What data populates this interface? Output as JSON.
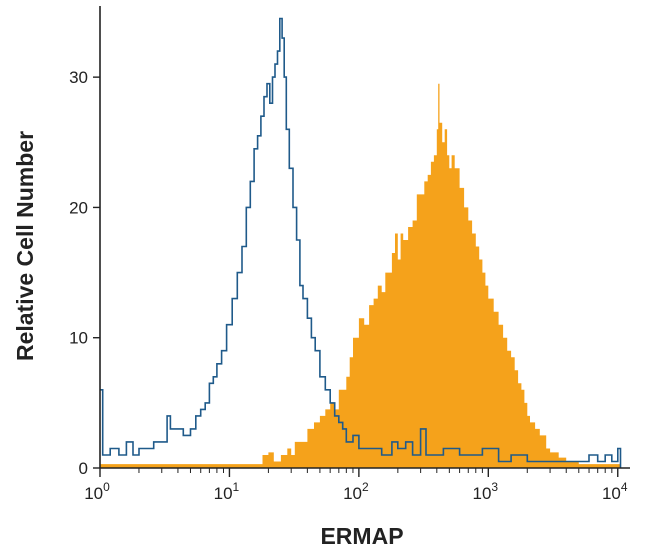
{
  "chart_data": {
    "type": "area",
    "title": "",
    "xlabel": "ERMAP",
    "ylabel": "Relative Cell Number",
    "xscale": "log",
    "xlim": [
      1,
      12000
    ],
    "ylim": [
      0,
      35
    ],
    "x_ticks": [
      {
        "value": 1,
        "base": "10",
        "exp": "0"
      },
      {
        "value": 10,
        "base": "10",
        "exp": "1"
      },
      {
        "value": 100,
        "base": "10",
        "exp": "2"
      },
      {
        "value": 1000,
        "base": "10",
        "exp": "3"
      },
      {
        "value": 10000,
        "base": "10",
        "exp": "4"
      }
    ],
    "y_ticks": [
      "0",
      "10",
      "20",
      "30"
    ],
    "grid": false,
    "legend": "none",
    "series": [
      {
        "style": "outline",
        "color": "#1f5a8a",
        "points": [
          [
            1.0,
            6
          ],
          [
            1.05,
            1
          ],
          [
            1.2,
            1.5
          ],
          [
            1.4,
            1
          ],
          [
            1.6,
            2
          ],
          [
            1.8,
            1
          ],
          [
            2.0,
            1.5
          ],
          [
            2.3,
            1.5
          ],
          [
            2.6,
            2
          ],
          [
            3.0,
            2
          ],
          [
            3.3,
            4
          ],
          [
            3.5,
            3
          ],
          [
            4.0,
            3
          ],
          [
            4.4,
            2.5
          ],
          [
            5.0,
            3
          ],
          [
            5.5,
            4
          ],
          [
            6.0,
            4.5
          ],
          [
            6.5,
            5
          ],
          [
            7.0,
            6.5
          ],
          [
            7.5,
            7
          ],
          [
            8.0,
            8
          ],
          [
            8.7,
            9
          ],
          [
            9.5,
            11
          ],
          [
            10.5,
            13
          ],
          [
            11.5,
            15
          ],
          [
            12.5,
            17
          ],
          [
            13.5,
            20
          ],
          [
            14.5,
            22
          ],
          [
            15.5,
            24.5
          ],
          [
            16.5,
            25.5
          ],
          [
            17.5,
            27
          ],
          [
            18.5,
            28.5
          ],
          [
            19.5,
            29.5
          ],
          [
            20.5,
            28
          ],
          [
            21.5,
            30
          ],
          [
            22.5,
            31
          ],
          [
            23.5,
            32
          ],
          [
            24.5,
            34.5
          ],
          [
            25.5,
            33
          ],
          [
            26.5,
            30
          ],
          [
            27.5,
            26
          ],
          [
            29,
            23
          ],
          [
            31,
            20
          ],
          [
            33,
            17.5
          ],
          [
            35,
            14
          ],
          [
            37,
            13
          ],
          [
            40,
            11.5
          ],
          [
            43,
            10
          ],
          [
            46,
            9
          ],
          [
            50,
            7
          ],
          [
            55,
            6
          ],
          [
            60,
            5
          ],
          [
            65,
            4
          ],
          [
            70,
            3.5
          ],
          [
            75,
            3
          ],
          [
            80,
            2
          ],
          [
            90,
            2.5
          ],
          [
            100,
            1.5
          ],
          [
            120,
            1.5
          ],
          [
            150,
            1
          ],
          [
            180,
            2
          ],
          [
            200,
            1.5
          ],
          [
            230,
            2
          ],
          [
            260,
            1
          ],
          [
            300,
            3
          ],
          [
            330,
            1
          ],
          [
            400,
            1
          ],
          [
            450,
            1.5
          ],
          [
            500,
            1.5
          ],
          [
            600,
            1
          ],
          [
            700,
            1
          ],
          [
            800,
            1
          ],
          [
            900,
            1.5
          ],
          [
            1000,
            1.5
          ],
          [
            1200,
            0.5
          ],
          [
            1500,
            1
          ],
          [
            2000,
            0.5
          ],
          [
            3000,
            0.5
          ],
          [
            4000,
            0.5
          ],
          [
            5000,
            0.5
          ],
          [
            6000,
            1
          ],
          [
            7000,
            0.5
          ],
          [
            8000,
            1
          ],
          [
            9000,
            0.5
          ],
          [
            10000,
            1.5
          ],
          [
            10500,
            0
          ]
        ]
      },
      {
        "style": "filled",
        "color": "#f5a21b",
        "points": [
          [
            1.0,
            0.3
          ],
          [
            17.5,
            0.3
          ],
          [
            18,
            1
          ],
          [
            20,
            1.2
          ],
          [
            22,
            0.5
          ],
          [
            25,
            1
          ],
          [
            28,
            1.5
          ],
          [
            30,
            1
          ],
          [
            32,
            2
          ],
          [
            35,
            2
          ],
          [
            40,
            3
          ],
          [
            45,
            3.5
          ],
          [
            50,
            4
          ],
          [
            55,
            4.5
          ],
          [
            60,
            5
          ],
          [
            65,
            4.5
          ],
          [
            70,
            6
          ],
          [
            75,
            6
          ],
          [
            80,
            7
          ],
          [
            85,
            8.5
          ],
          [
            90,
            10
          ],
          [
            100,
            11.5
          ],
          [
            110,
            11
          ],
          [
            120,
            12.5
          ],
          [
            130,
            13
          ],
          [
            140,
            14
          ],
          [
            150,
            13.5
          ],
          [
            160,
            15
          ],
          [
            170,
            15
          ],
          [
            180,
            16.5
          ],
          [
            190,
            18
          ],
          [
            200,
            16
          ],
          [
            210,
            18
          ],
          [
            220,
            17.5
          ],
          [
            240,
            18.5
          ],
          [
            260,
            19
          ],
          [
            280,
            21
          ],
          [
            300,
            21
          ],
          [
            320,
            22
          ],
          [
            340,
            22.5
          ],
          [
            360,
            23.5
          ],
          [
            380,
            24
          ],
          [
            400,
            26
          ],
          [
            410,
            29.5
          ],
          [
            420,
            26.5
          ],
          [
            440,
            25
          ],
          [
            460,
            26
          ],
          [
            480,
            24
          ],
          [
            500,
            23
          ],
          [
            520,
            24
          ],
          [
            550,
            23
          ],
          [
            600,
            21.5
          ],
          [
            650,
            20
          ],
          [
            700,
            19
          ],
          [
            750,
            18
          ],
          [
            800,
            17
          ],
          [
            850,
            16
          ],
          [
            900,
            15
          ],
          [
            950,
            14
          ],
          [
            1000,
            13
          ],
          [
            1100,
            12
          ],
          [
            1200,
            11
          ],
          [
            1300,
            10
          ],
          [
            1400,
            9
          ],
          [
            1500,
            8.5
          ],
          [
            1600,
            7.5
          ],
          [
            1700,
            6.5
          ],
          [
            1800,
            6
          ],
          [
            1900,
            5
          ],
          [
            2000,
            4
          ],
          [
            2100,
            3.5
          ],
          [
            2300,
            3
          ],
          [
            2500,
            2.5
          ],
          [
            2800,
            1.5
          ],
          [
            3000,
            1.2
          ],
          [
            3500,
            0.8
          ],
          [
            4000,
            0.5
          ],
          [
            5000,
            0.3
          ],
          [
            10500,
            0.3
          ]
        ]
      }
    ]
  }
}
